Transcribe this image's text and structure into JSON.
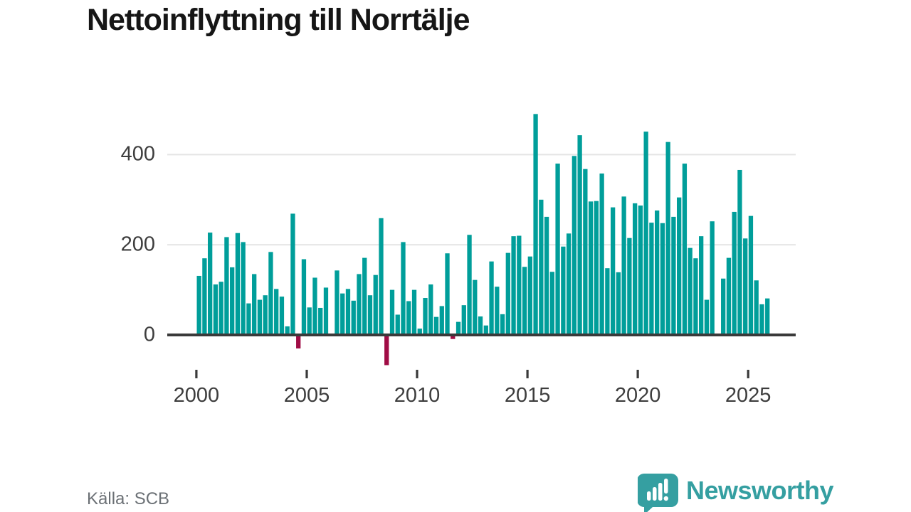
{
  "header": {
    "title": "Nettoinflyttning till Norrtälje"
  },
  "footer": {
    "source_label": "Källa: SCB",
    "brand": "Newsworthy"
  },
  "colors": {
    "bar_positive": "#009e9a",
    "bar_negative": "#a00c45",
    "axis": "#3a3a3a",
    "gridline": "#e4e4e4",
    "title_text": "#161616",
    "tick_text": "#3d3d3d",
    "source_text": "#6b7075",
    "brand_teal": "#359fa1",
    "background": "#ffffff"
  },
  "chart_data": {
    "type": "bar",
    "title": "Nettoinflyttning till Norrtälje",
    "x_period": "quarterly",
    "x_first": "2000 Q1",
    "x_last": "2025 Q4",
    "xticks": [
      2000,
      2005,
      2010,
      2015,
      2020,
      2025
    ],
    "yticks": [
      400,
      200,
      0
    ],
    "ylim": [
      -80,
      500
    ],
    "grid": "horizontal",
    "legend": "none",
    "values": [
      131,
      170,
      227,
      112,
      118,
      217,
      150,
      226,
      206,
      70,
      135,
      78,
      88,
      184,
      102,
      85,
      19,
      269,
      -30,
      168,
      61,
      127,
      60,
      105,
      2,
      143,
      92,
      102,
      76,
      135,
      171,
      88,
      133,
      259,
      -67,
      100,
      45,
      206,
      75,
      100,
      14,
      82,
      112,
      40,
      64,
      181,
      -9,
      29,
      66,
      222,
      122,
      41,
      21,
      163,
      107,
      46,
      182,
      219,
      220,
      151,
      174,
      490,
      300,
      262,
      140,
      380,
      196,
      225,
      397,
      443,
      368,
      296,
      297,
      358,
      148,
      283,
      139,
      307,
      215,
      292,
      287,
      451,
      249,
      276,
      248,
      428,
      262,
      305,
      380,
      193,
      170,
      219,
      78,
      252,
      2,
      125,
      171,
      273,
      366,
      214,
      264,
      121,
      68,
      81
    ],
    "negative_quarters": [
      "2004 Q3",
      "2008 Q3",
      "2011 Q3"
    ]
  }
}
